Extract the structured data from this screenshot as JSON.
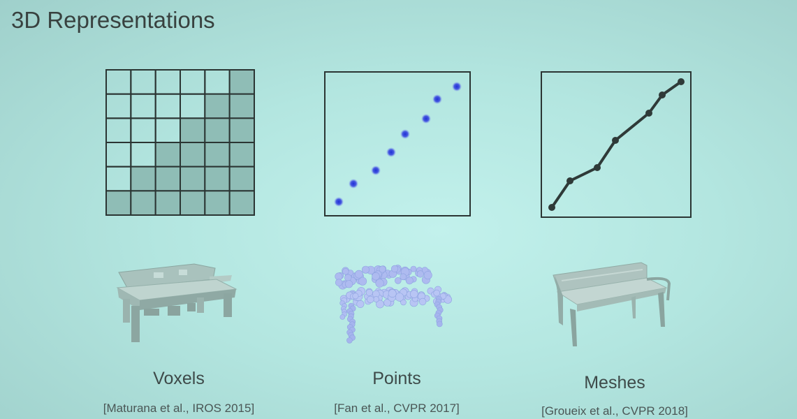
{
  "slide": {
    "title": "3D Representations"
  },
  "columns": [
    {
      "label": "Voxels",
      "citation": "[Maturana et al., IROS 2015]",
      "diagram": "voxel-grid",
      "render": "voxel-bench"
    },
    {
      "label": "Points",
      "citation": "[Fan et al., CVPR 2017]",
      "diagram": "point-plot",
      "render": "point-cloud-bench"
    },
    {
      "label": "Meshes",
      "citation": "[Groueix et al., CVPR 2018]",
      "diagram": "mesh-polyline",
      "render": "mesh-bench"
    }
  ],
  "voxel_grid": {
    "rows": 6,
    "cols": 6,
    "filled": [
      [
        0,
        0,
        0,
        0,
        0,
        1
      ],
      [
        0,
        0,
        0,
        0,
        1,
        1
      ],
      [
        0,
        0,
        0,
        1,
        1,
        1
      ],
      [
        0,
        0,
        1,
        1,
        1,
        1
      ],
      [
        0,
        1,
        1,
        1,
        1,
        1
      ],
      [
        1,
        1,
        1,
        1,
        1,
        1
      ]
    ]
  },
  "colors": {
    "voxel_fill": "#8fbdb6",
    "point": "#2d3fd8",
    "mesh": "#2f3a38"
  }
}
